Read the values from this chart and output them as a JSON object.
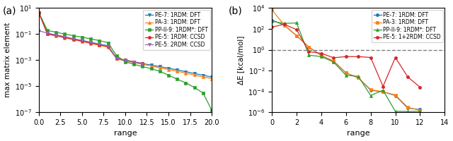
{
  "panel_a": {
    "title": "(a)",
    "xlabel": "range",
    "ylabel": "max matrix element",
    "xlim": [
      0,
      20
    ],
    "ylim": [
      1e-07,
      10
    ],
    "series": [
      {
        "label": "PE-7: 1RDM: DFT",
        "color": "#1f77b4",
        "marker": "v",
        "x": [
          0,
          1,
          2,
          3,
          4,
          5,
          6,
          7,
          8,
          9,
          10,
          11,
          12,
          13,
          14,
          15,
          16,
          17,
          18,
          19,
          20
        ],
        "y": [
          4.5,
          0.11,
          0.085,
          0.06,
          0.042,
          0.032,
          0.023,
          0.017,
          0.013,
          0.0014,
          0.001,
          0.00075,
          0.00055,
          0.00042,
          0.00032,
          0.00024,
          0.00018,
          0.00013,
          9.5e-05,
          7e-05,
          5e-05
        ]
      },
      {
        "label": "PA-3: 1RDM: DFT",
        "color": "#ff7f0e",
        "marker": "^",
        "x": [
          0,
          1,
          2,
          3,
          4,
          5,
          6,
          7,
          8,
          9,
          10,
          11,
          12,
          13,
          14,
          15,
          16,
          17,
          18,
          19,
          20
        ],
        "y": [
          4.5,
          0.1,
          0.073,
          0.052,
          0.037,
          0.027,
          0.019,
          0.014,
          0.01,
          0.0013,
          0.00085,
          0.00065,
          0.00048,
          0.00036,
          0.00026,
          0.00019,
          0.00014,
          0.0001,
          7.2e-05,
          5.2e-05,
          3.8e-05
        ]
      },
      {
        "label": "PP-II-9: 1RDM*: DFT",
        "color": "#2ca02c",
        "marker": "s",
        "x": [
          0,
          1,
          2,
          3,
          4,
          5,
          6,
          7,
          8,
          9,
          10,
          11,
          12,
          13,
          14,
          15,
          16,
          17,
          18,
          19,
          20
        ],
        "y": [
          4.5,
          0.19,
          0.14,
          0.1,
          0.075,
          0.058,
          0.043,
          0.032,
          0.022,
          0.0022,
          0.00075,
          0.00048,
          0.00032,
          0.00022,
          0.00014,
          7e-05,
          3.5e-05,
          1.8e-05,
          8e-06,
          3e-06,
          1.5e-07
        ]
      },
      {
        "label": "PE-5: 1RDM: CCSD",
        "color": "#d62728",
        "marker": "o",
        "x": [
          0,
          1,
          2,
          3,
          4,
          5,
          6,
          7,
          8,
          9,
          10,
          11,
          12
        ],
        "y": [
          4.5,
          0.1,
          0.077,
          0.055,
          0.04,
          0.029,
          0.021,
          0.015,
          0.011,
          0.0014,
          0.001,
          0.00075,
          0.00055
        ]
      },
      {
        "label": "PE-5: 2RDM: CCSD",
        "color": "#9467bd",
        "marker": "v",
        "x": [
          0,
          1,
          2,
          3,
          4,
          5,
          6,
          7,
          8,
          9,
          10,
          11,
          12
        ],
        "y": [
          0.18,
          0.12,
          0.087,
          0.063,
          0.045,
          0.033,
          0.024,
          0.017,
          0.012,
          0.0013,
          0.00095,
          0.0007,
          0.00052
        ]
      }
    ]
  },
  "panel_b": {
    "title": "(b)",
    "xlabel": "range",
    "ylabel": "ΔE [kcal/mol]",
    "xlim": [
      0,
      14
    ],
    "ylim": [
      1e-06,
      10000.0
    ],
    "dashed_line": 1.0,
    "series": [
      {
        "label": "PE-7: 1RDM: DFT",
        "color": "#1f77b4",
        "marker": "o",
        "x": [
          0,
          1,
          2,
          3,
          4,
          5,
          6,
          7,
          8,
          9,
          10,
          11,
          12
        ],
        "y": [
          700,
          230,
          22,
          1.8,
          0.28,
          0.08,
          0.006,
          0.002,
          0.00013,
          9e-05,
          4e-05,
          2.5e-06,
          1.8e-06
        ]
      },
      {
        "label": "PA-3: 1RDM: DFT",
        "color": "#ff7f0e",
        "marker": "s",
        "x": [
          0,
          1,
          2,
          3,
          4,
          5,
          6,
          7,
          8,
          9,
          10,
          11,
          12
        ],
        "y": [
          7000,
          230,
          22,
          1.8,
          0.28,
          0.08,
          0.006,
          0.002,
          0.00015,
          9e-05,
          4.5e-05,
          3e-06,
          1.5e-06
        ]
      },
      {
        "label": "PP-II-9: 1RDM*: DFT",
        "color": "#2ca02c",
        "marker": "^",
        "x": [
          0,
          1,
          2,
          3,
          4,
          5,
          6,
          7,
          8,
          9,
          10,
          11,
          12
        ],
        "y": [
          550,
          330,
          380,
          0.3,
          0.22,
          0.065,
          0.0035,
          0.0028,
          4e-05,
          0.00013,
          1.2e-06,
          1.2e-06,
          1.2e-06
        ]
      },
      {
        "label": "PE-5: 1+2RDM: CCSD",
        "color": "#d62728",
        "marker": "o",
        "x": [
          0,
          1,
          2,
          3,
          4,
          5,
          6,
          7,
          8,
          9,
          10,
          11,
          12
        ],
        "y": [
          150,
          280,
          85,
          0.65,
          0.45,
          0.17,
          0.22,
          0.22,
          0.18,
          0.0003,
          0.18,
          0.0025,
          0.00025
        ]
      }
    ]
  }
}
